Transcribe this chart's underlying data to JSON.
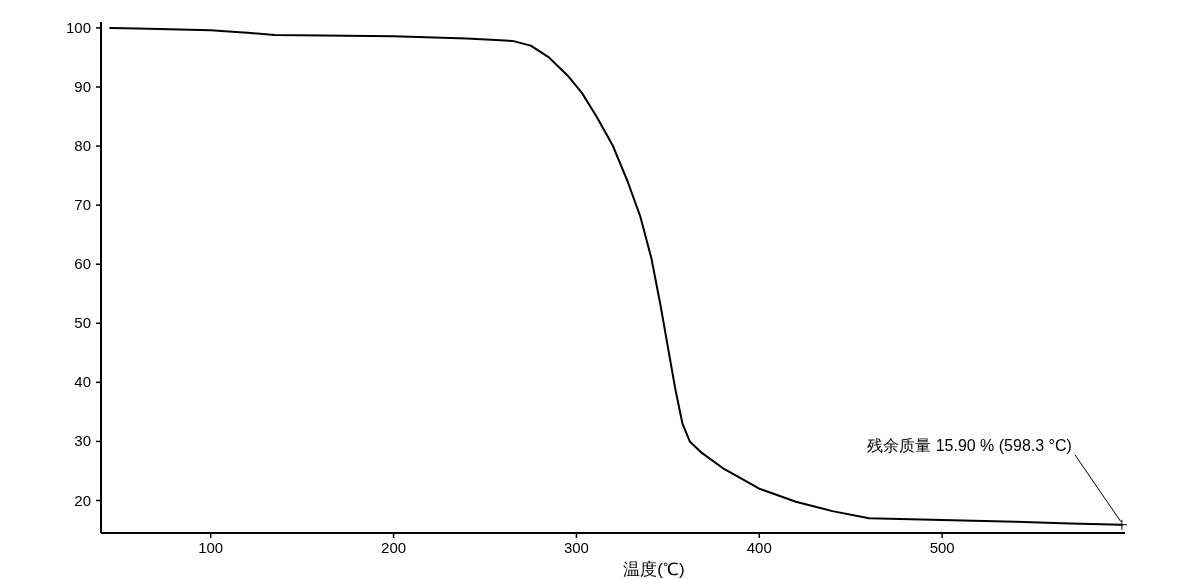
{
  "chart_data": {
    "type": "line",
    "xlabel": "温度(℃)",
    "x": [
      45,
      60,
      100,
      120,
      135,
      200,
      240,
      265,
      275,
      285,
      295,
      303,
      311,
      320,
      328,
      335,
      341,
      346,
      350,
      354,
      358,
      362,
      368,
      380,
      400,
      420,
      440,
      460,
      500,
      540,
      570,
      598.3
    ],
    "series": [
      {
        "color": "#000000",
        "values": [
          100,
          99.9,
          99.6,
          99.2,
          98.8,
          98.6,
          98.2,
          97.8,
          97,
          95,
          92,
          89,
          85,
          80,
          74,
          68,
          61,
          53,
          46,
          39,
          33,
          30,
          28.2,
          25.5,
          22,
          19.8,
          18.2,
          17,
          16.7,
          16.4,
          16.1,
          15.9
        ]
      }
    ],
    "xlim": [
      40,
      600
    ],
    "ylim": [
      14.5,
      101
    ],
    "xticks": [
      100,
      200,
      300,
      400,
      500
    ],
    "yticks": [
      20,
      30,
      40,
      50,
      60,
      70,
      80,
      90,
      100
    ],
    "grid": false,
    "marker": "none",
    "line_style": "solid",
    "annotations": [
      {
        "text": "残余质量 15.90 % (598.3 °C)",
        "x": 598.3,
        "y": 15.9
      }
    ]
  }
}
